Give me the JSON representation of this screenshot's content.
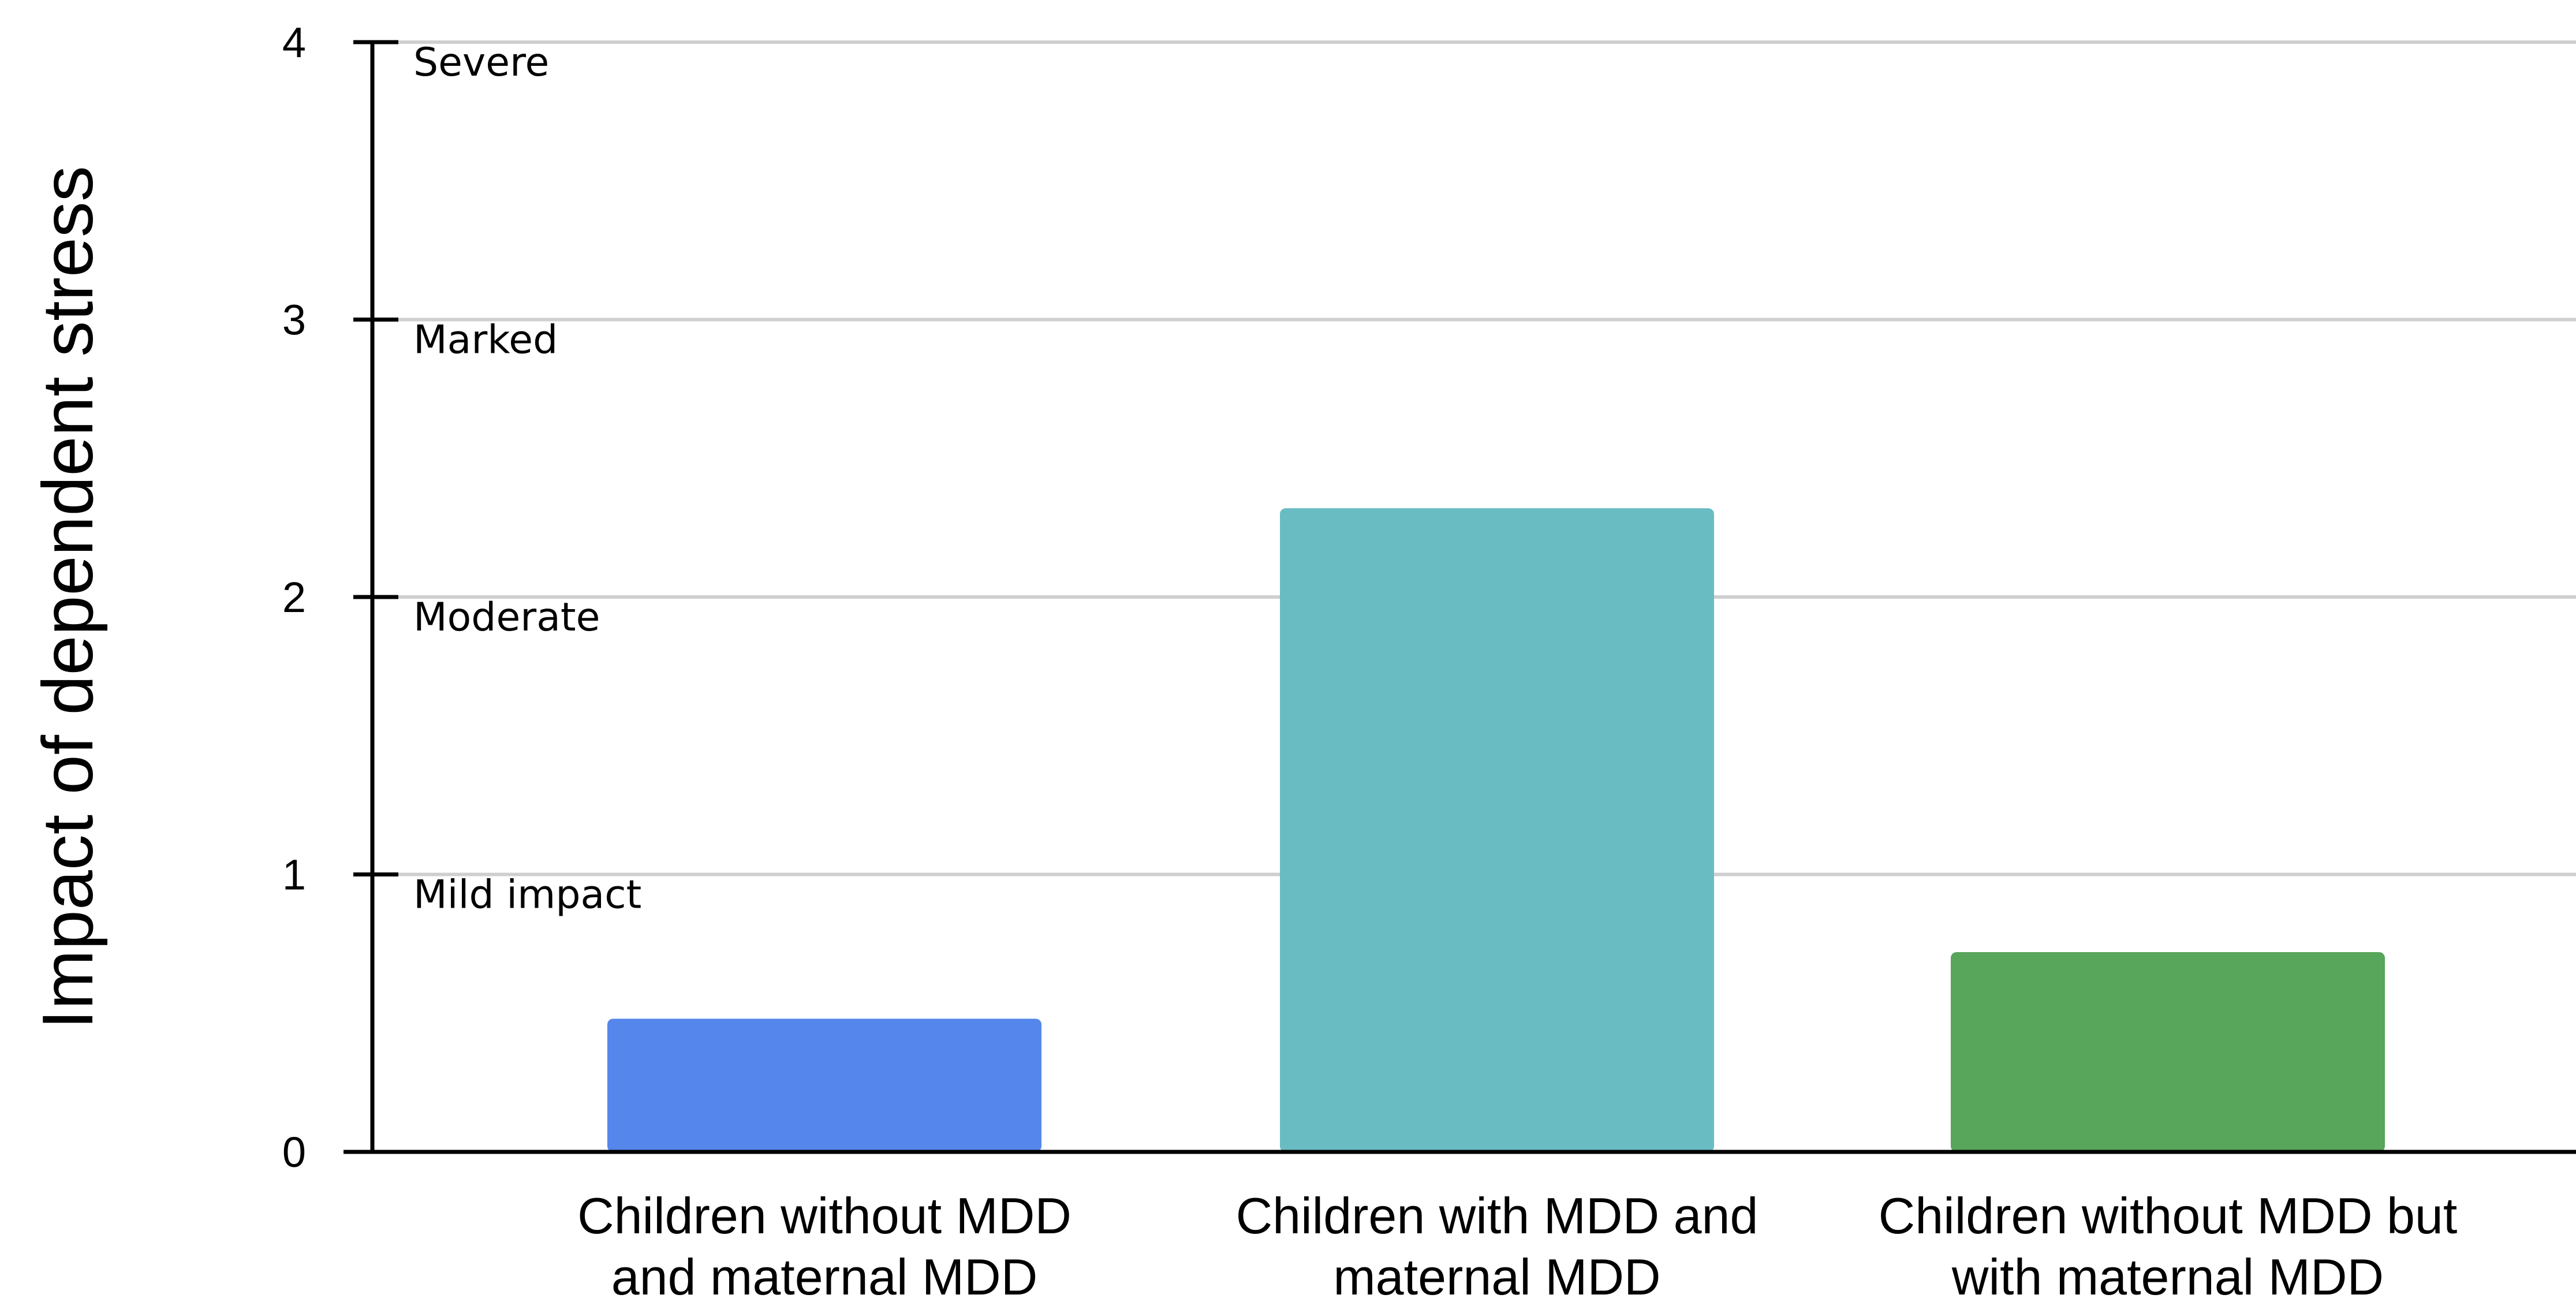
{
  "chart_data": {
    "type": "bar",
    "title": "",
    "xlabel": "",
    "ylabel": "Impact of dependent stress",
    "ylim": [
      0,
      4
    ],
    "y_ticks": [
      "0",
      "1",
      "2",
      "3",
      "4"
    ],
    "levels": [
      {
        "value": 1,
        "label": "Mild impact"
      },
      {
        "value": 2,
        "label": "Moderate"
      },
      {
        "value": 3,
        "label": "Marked"
      },
      {
        "value": 4,
        "label": "Severe"
      }
    ],
    "grid": true,
    "legend": "none",
    "categories": [
      [
        "Children without MDD",
        "and maternal MDD"
      ],
      [
        "Children with MDD and",
        "maternal MDD"
      ],
      [
        "Children without MDD but",
        "with maternal MDD"
      ]
    ],
    "values": [
      0.48,
      2.32,
      0.72
    ],
    "colors": [
      "#5586ec",
      "#6abcc3",
      "#58a55c"
    ]
  }
}
